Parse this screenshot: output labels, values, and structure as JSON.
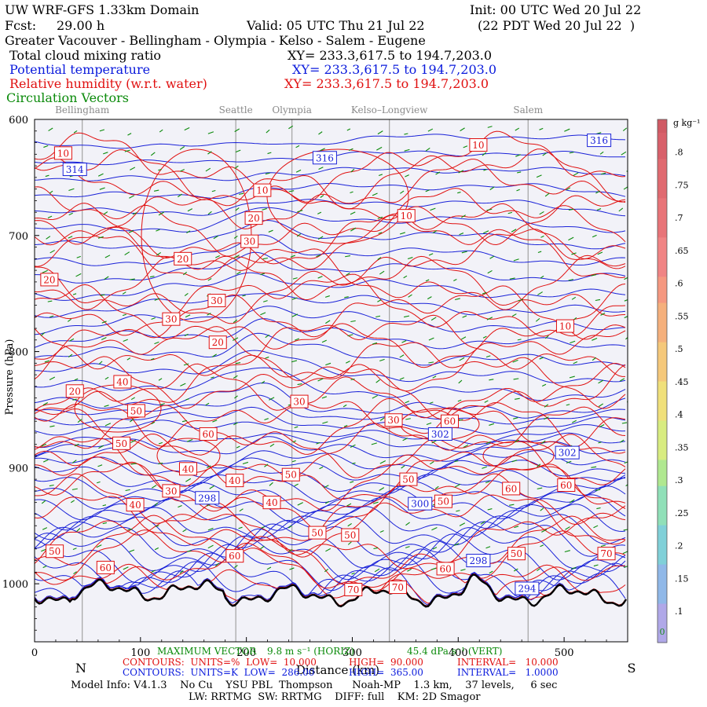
{
  "header": {
    "model": "UW WRF-GFS 1.33km Domain",
    "init": "Init: 00 UTC Wed 20 Jul 22",
    "fcst_label": "Fcst:",
    "fcst_value": "29.00 h",
    "valid": "Valid: 05 UTC Thu 21 Jul 22",
    "valid_local": "(22 PDT Wed 20 Jul 22  )",
    "route": "Greater Vacouver - Bellingham - Olympia - Kelso - Salem - Eugene",
    "field1": "Total cloud mixing ratio",
    "field1_xy": "XY= 233.3,617.5 to 194.7,203.0",
    "field2": "Potential temperature",
    "field2_xy": "XY= 233.3,617.5 to 194.7,203.0",
    "field3": "Relative humidity (w.r.t. water)",
    "field3_xy": "XY= 233.3,617.5 to 194.7,203.0",
    "field4": "Circulation Vectors"
  },
  "colors": {
    "potential_temperature": "#1a22d8",
    "relative_humidity": "#e01010",
    "vectors": "#0a8a0a",
    "terrain": "#000000",
    "background": "#f2f2f8"
  },
  "chart_data": {
    "type": "cross-section",
    "ylabel": "Pressure (hPa)",
    "xlabel": "Distance (km)",
    "x_ticks": [
      0,
      100,
      200,
      300,
      400,
      500
    ],
    "y_ticks": [
      600,
      700,
      800,
      900,
      1000
    ],
    "xlim": [
      0,
      560
    ],
    "ylim": [
      1050,
      600
    ],
    "end_labels": {
      "left": "N",
      "right": "S"
    },
    "locations": [
      {
        "name": "Bellingham",
        "x": 45
      },
      {
        "name": "Seattle",
        "x": 190
      },
      {
        "name": "Olympia",
        "x": 243
      },
      {
        "name": "Kelso–Longview",
        "x": 335
      },
      {
        "name": "Salem",
        "x": 466
      }
    ],
    "theta_labels": [
      {
        "text": "314",
        "x": 38,
        "p": 643
      },
      {
        "text": "316",
        "x": 274,
        "p": 633
      },
      {
        "text": "316",
        "x": 533,
        "p": 618
      },
      {
        "text": "302",
        "x": 383,
        "p": 871
      },
      {
        "text": "302",
        "x": 503,
        "p": 887
      },
      {
        "text": "300",
        "x": 364,
        "p": 931
      },
      {
        "text": "298",
        "x": 163,
        "p": 926
      },
      {
        "text": "298",
        "x": 419,
        "p": 980
      },
      {
        "text": "294",
        "x": 465,
        "p": 1004
      }
    ],
    "rh_labels": [
      {
        "text": "10",
        "x": 27,
        "p": 629
      },
      {
        "text": "10",
        "x": 215,
        "p": 661
      },
      {
        "text": "20",
        "x": 207,
        "p": 685
      },
      {
        "text": "30",
        "x": 203,
        "p": 705
      },
      {
        "text": "20",
        "x": 140,
        "p": 720
      },
      {
        "text": "20",
        "x": 14,
        "p": 738
      },
      {
        "text": "30",
        "x": 172,
        "p": 756
      },
      {
        "text": "30",
        "x": 129,
        "p": 772
      },
      {
        "text": "20",
        "x": 173,
        "p": 792
      },
      {
        "text": "10",
        "x": 351,
        "p": 683
      },
      {
        "text": "10",
        "x": 419,
        "p": 622
      },
      {
        "text": "10",
        "x": 501,
        "p": 778
      },
      {
        "text": "20",
        "x": 38,
        "p": 834
      },
      {
        "text": "40",
        "x": 83,
        "p": 826
      },
      {
        "text": "50",
        "x": 96,
        "p": 851
      },
      {
        "text": "60",
        "x": 164,
        "p": 871
      },
      {
        "text": "30",
        "x": 250,
        "p": 843
      },
      {
        "text": "30",
        "x": 339,
        "p": 859
      },
      {
        "text": "60",
        "x": 392,
        "p": 860
      },
      {
        "text": "50",
        "x": 82,
        "p": 879
      },
      {
        "text": "40",
        "x": 145,
        "p": 901
      },
      {
        "text": "40",
        "x": 189,
        "p": 911
      },
      {
        "text": "50",
        "x": 242,
        "p": 906
      },
      {
        "text": "30",
        "x": 129,
        "p": 920
      },
      {
        "text": "40",
        "x": 224,
        "p": 930
      },
      {
        "text": "40",
        "x": 95,
        "p": 932
      },
      {
        "text": "50",
        "x": 353,
        "p": 910
      },
      {
        "text": "50",
        "x": 386,
        "p": 929
      },
      {
        "text": "60",
        "x": 450,
        "p": 918
      },
      {
        "text": "60",
        "x": 502,
        "p": 915
      },
      {
        "text": "50",
        "x": 267,
        "p": 956
      },
      {
        "text": "50",
        "x": 298,
        "p": 958
      },
      {
        "text": "50",
        "x": 19,
        "p": 972
      },
      {
        "text": "60",
        "x": 67,
        "p": 986
      },
      {
        "text": "60",
        "x": 189,
        "p": 976
      },
      {
        "text": "60",
        "x": 388,
        "p": 987
      },
      {
        "text": "50",
        "x": 455,
        "p": 974
      },
      {
        "text": "70",
        "x": 540,
        "p": 974
      },
      {
        "text": "70",
        "x": 301,
        "p": 1005
      },
      {
        "text": "70",
        "x": 343,
        "p": 1003
      }
    ],
    "colorbar": {
      "label": "g kg⁻¹",
      "ticks": [
        ".1",
        ".15",
        ".2",
        ".25",
        ".3",
        ".35",
        ".4",
        ".45",
        ".5",
        ".55",
        ".6",
        ".65",
        ".7",
        ".75",
        ".8"
      ],
      "min_mark": "0"
    }
  },
  "footer": {
    "vectors_title": "MAXIMUM VECTOR",
    "vectors_horiz": "9.8 m s⁻¹ (HORIZ)",
    "vectors_vert": "45.4 dPa s⁻¹ (VERT)",
    "rh_contours": "CONTOURS:  UNITS=%  LOW=  10.000",
    "rh_high": "HIGH=  90.000",
    "rh_interval": "INTERVAL=   10.000",
    "th_contours": "CONTOURS:  UNITS=K  LOW=  286.00",
    "th_high": "HIGH=  365.00",
    "th_interval": "INTERVAL=   1.0000",
    "model_info": "Model Info: V4.1.3    No Cu    YSU PBL  Thompson      Noah-MP    1.3 km,    37 levels,     6 sec",
    "physics": "LW: RRTMG  SW: RRTMG    DIFF: full    KM: 2D Smagor"
  }
}
